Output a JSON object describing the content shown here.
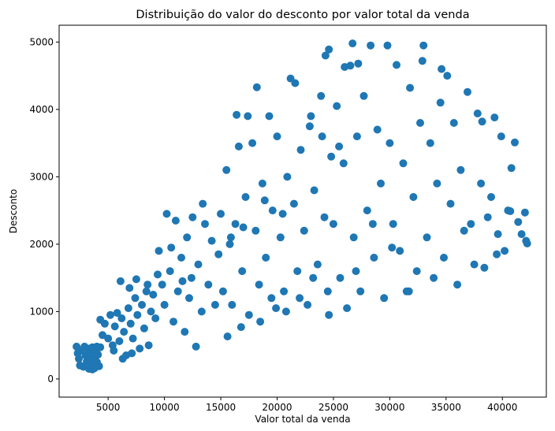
{
  "chart_data": {
    "type": "scatter",
    "title": "Distribuição do valor do desconto por valor total da venda",
    "xlabel": "Valor total da venda",
    "ylabel": "Desconto",
    "xlim": [
      650,
      43900
    ],
    "ylim": [
      -270,
      5250
    ],
    "xticks": [
      5000,
      10000,
      15000,
      20000,
      25000,
      30000,
      35000,
      40000
    ],
    "yticks": [
      0,
      1000,
      2000,
      3000,
      4000,
      5000
    ],
    "xtick_labels": [
      "5000",
      "10000",
      "15000",
      "20000",
      "25000",
      "30000",
      "35000",
      "40000"
    ],
    "ytick_labels": [
      "0",
      "1000",
      "2000",
      "3000",
      "4000",
      "5000"
    ],
    "grid": false,
    "marker_color": "#1f77b4",
    "series": [
      {
        "points": [
          [
            2200,
            480
          ],
          [
            2400,
            300
          ],
          [
            2600,
            420
          ],
          [
            2800,
            180
          ],
          [
            3000,
            350
          ],
          [
            3100,
            260
          ],
          [
            3200,
            450
          ],
          [
            3300,
            150
          ],
          [
            3400,
            380
          ],
          [
            3500,
            220
          ],
          [
            3600,
            470
          ],
          [
            3700,
            300
          ],
          [
            3800,
            160
          ],
          [
            3900,
            420
          ],
          [
            4000,
            250
          ],
          [
            4100,
            360
          ],
          [
            4200,
            190
          ],
          [
            4300,
            470
          ],
          [
            2500,
            200
          ],
          [
            2900,
            480
          ],
          [
            3300,
            300
          ],
          [
            3600,
            140
          ],
          [
            4000,
            480
          ],
          [
            2300,
            380
          ],
          [
            3700,
            420
          ],
          [
            4300,
            880
          ],
          [
            4500,
            650
          ],
          [
            4700,
            820
          ],
          [
            5000,
            600
          ],
          [
            5200,
            950
          ],
          [
            5400,
            500
          ],
          [
            5600,
            780
          ],
          [
            5800,
            980
          ],
          [
            6000,
            560
          ],
          [
            6200,
            900
          ],
          [
            6400,
            700
          ],
          [
            6600,
            350
          ],
          [
            6800,
            1050
          ],
          [
            7000,
            820
          ],
          [
            7200,
            600
          ],
          [
            7400,
            1200
          ],
          [
            7600,
            950
          ],
          [
            7800,
            450
          ],
          [
            8000,
            1100
          ],
          [
            8200,
            750
          ],
          [
            8400,
            1300
          ],
          [
            8600,
            500
          ],
          [
            8800,
            1000
          ],
          [
            6100,
            1450
          ],
          [
            6900,
            1350
          ],
          [
            7500,
            1480
          ],
          [
            5500,
            420
          ],
          [
            6300,
            300
          ],
          [
            7100,
            380
          ],
          [
            8500,
            1400
          ],
          [
            9000,
            1250
          ],
          [
            9200,
            900
          ],
          [
            9500,
            1900
          ],
          [
            9800,
            1400
          ],
          [
            10000,
            1100
          ],
          [
            10200,
            2450
          ],
          [
            10500,
            1600
          ],
          [
            10800,
            850
          ],
          [
            11000,
            2350
          ],
          [
            11200,
            1300
          ],
          [
            11500,
            1800
          ],
          [
            11800,
            700
          ],
          [
            12000,
            2100
          ],
          [
            12200,
            1200
          ],
          [
            12500,
            2400
          ],
          [
            12800,
            480
          ],
          [
            13000,
            1700
          ],
          [
            13300,
            1000
          ],
          [
            13600,
            2300
          ],
          [
            13900,
            1400
          ],
          [
            14200,
            2050
          ],
          [
            14500,
            1100
          ],
          [
            14800,
            1850
          ],
          [
            9400,
            1550
          ],
          [
            10600,
            1950
          ],
          [
            11600,
            1450
          ],
          [
            12400,
            1500
          ],
          [
            13400,
            2600
          ],
          [
            15000,
            2450
          ],
          [
            15200,
            1300
          ],
          [
            15500,
            3100
          ],
          [
            15800,
            2000
          ],
          [
            16000,
            1100
          ],
          [
            16300,
            2300
          ],
          [
            16600,
            3450
          ],
          [
            16900,
            1600
          ],
          [
            17200,
            2700
          ],
          [
            17500,
            950
          ],
          [
            17800,
            3500
          ],
          [
            18100,
            2200
          ],
          [
            18400,
            1400
          ],
          [
            18700,
            2900
          ],
          [
            19000,
            1800
          ],
          [
            19300,
            3900
          ],
          [
            19600,
            2500
          ],
          [
            19900,
            1050
          ],
          [
            16400,
            3920
          ],
          [
            17400,
            3900
          ],
          [
            18200,
            4330
          ],
          [
            15900,
            2100
          ],
          [
            17000,
            2250
          ],
          [
            18900,
            2650
          ],
          [
            19500,
            1200
          ],
          [
            15600,
            630
          ],
          [
            16800,
            770
          ],
          [
            18500,
            850
          ],
          [
            20000,
            3600
          ],
          [
            20300,
            2100
          ],
          [
            20600,
            1300
          ],
          [
            20900,
            3000
          ],
          [
            21200,
            4460
          ],
          [
            21500,
            2600
          ],
          [
            21800,
            1600
          ],
          [
            22100,
            3400
          ],
          [
            22400,
            2200
          ],
          [
            22700,
            1100
          ],
          [
            23000,
            3900
          ],
          [
            23300,
            2800
          ],
          [
            23600,
            1700
          ],
          [
            23900,
            4200
          ],
          [
            24200,
            2400
          ],
          [
            24500,
            1300
          ],
          [
            24800,
            3300
          ],
          [
            20500,
            2450
          ],
          [
            21600,
            4390
          ],
          [
            22900,
            3750
          ],
          [
            24000,
            3600
          ],
          [
            20800,
            1000
          ],
          [
            22000,
            1200
          ],
          [
            23200,
            1500
          ],
          [
            24600,
            950
          ],
          [
            25000,
            2300
          ],
          [
            25300,
            4050
          ],
          [
            25600,
            1500
          ],
          [
            25900,
            3200
          ],
          [
            26200,
            1050
          ],
          [
            26500,
            4650
          ],
          [
            26800,
            2100
          ],
          [
            27100,
            3600
          ],
          [
            27400,
            1300
          ],
          [
            27700,
            4200
          ],
          [
            28000,
            2500
          ],
          [
            28300,
            4950
          ],
          [
            28600,
            1800
          ],
          [
            28900,
            3700
          ],
          [
            29200,
            2900
          ],
          [
            29500,
            1200
          ],
          [
            29800,
            4950
          ],
          [
            24300,
            4800
          ],
          [
            24600,
            4890
          ],
          [
            26000,
            4630
          ],
          [
            26700,
            4980
          ],
          [
            27200,
            4680
          ],
          [
            25500,
            3450
          ],
          [
            27000,
            1600
          ],
          [
            28500,
            2300
          ],
          [
            30000,
            3500
          ],
          [
            30300,
            2300
          ],
          [
            30600,
            4660
          ],
          [
            30900,
            1900
          ],
          [
            31200,
            3200
          ],
          [
            31500,
            1300
          ],
          [
            31800,
            4320
          ],
          [
            32100,
            2700
          ],
          [
            32400,
            1600
          ],
          [
            32700,
            3800
          ],
          [
            33000,
            4950
          ],
          [
            33300,
            2100
          ],
          [
            33600,
            3500
          ],
          [
            33900,
            1500
          ],
          [
            34200,
            2900
          ],
          [
            34500,
            4100
          ],
          [
            34800,
            1800
          ],
          [
            35100,
            4500
          ],
          [
            35400,
            2600
          ],
          [
            35700,
            3800
          ],
          [
            36000,
            1400
          ],
          [
            36300,
            3100
          ],
          [
            36600,
            2200
          ],
          [
            36900,
            4260
          ],
          [
            30200,
            1950
          ],
          [
            31700,
            1300
          ],
          [
            32900,
            4720
          ],
          [
            34600,
            4600
          ],
          [
            37200,
            2300
          ],
          [
            37500,
            1700
          ],
          [
            37800,
            3940
          ],
          [
            38100,
            2900
          ],
          [
            38400,
            1650
          ],
          [
            38700,
            2400
          ],
          [
            39000,
            2700
          ],
          [
            39300,
            3880
          ],
          [
            39600,
            2150
          ],
          [
            39900,
            3600
          ],
          [
            40200,
            1900
          ],
          [
            40500,
            2500
          ],
          [
            40800,
            3130
          ],
          [
            41100,
            3510
          ],
          [
            41400,
            2330
          ],
          [
            41700,
            2150
          ],
          [
            42000,
            2470
          ],
          [
            42100,
            2050
          ],
          [
            42200,
            2010
          ],
          [
            38200,
            3820
          ],
          [
            39500,
            1850
          ],
          [
            40700,
            2490
          ]
        ]
      }
    ]
  }
}
